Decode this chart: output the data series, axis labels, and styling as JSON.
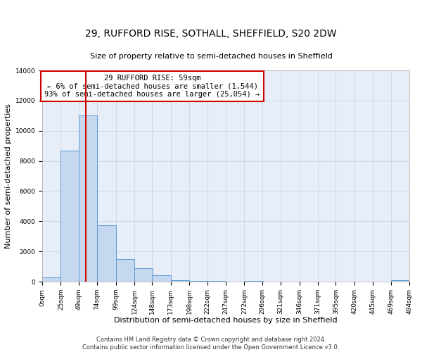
{
  "title": "29, RUFFORD RISE, SOTHALL, SHEFFIELD, S20 2DW",
  "subtitle": "Size of property relative to semi-detached houses in Sheffield",
  "xlabel": "Distribution of semi-detached houses by size in Sheffield",
  "ylabel": "Number of semi-detached properties",
  "bar_left_edges": [
    0,
    25,
    49,
    74,
    99,
    124,
    148,
    173,
    198,
    222,
    247,
    272,
    296,
    321,
    346,
    371,
    395,
    420,
    445,
    469
  ],
  "bar_heights": [
    300,
    8700,
    11000,
    3750,
    1500,
    900,
    400,
    100,
    60,
    50,
    0,
    50,
    0,
    0,
    0,
    0,
    0,
    0,
    0,
    100
  ],
  "bin_width": 25,
  "bar_color": "#c5d8f0",
  "bar_edge_color": "#5b9bd5",
  "property_line_x": 59,
  "property_line_color": "#cc0000",
  "ylim": [
    0,
    14000
  ],
  "yticks": [
    0,
    2000,
    4000,
    6000,
    8000,
    10000,
    12000,
    14000
  ],
  "xtick_labels": [
    "0sqm",
    "25sqm",
    "49sqm",
    "74sqm",
    "99sqm",
    "124sqm",
    "148sqm",
    "173sqm",
    "198sqm",
    "222sqm",
    "247sqm",
    "272sqm",
    "296sqm",
    "321sqm",
    "346sqm",
    "371sqm",
    "395sqm",
    "420sqm",
    "445sqm",
    "469sqm",
    "494sqm"
  ],
  "xtick_positions": [
    0,
    25,
    49,
    74,
    99,
    124,
    148,
    173,
    198,
    222,
    247,
    272,
    296,
    321,
    346,
    371,
    395,
    420,
    445,
    469,
    494
  ],
  "xlim": [
    0,
    494
  ],
  "annotation_title": "29 RUFFORD RISE: 59sqm",
  "annotation_line1": "← 6% of semi-detached houses are smaller (1,544)",
  "annotation_line2": "93% of semi-detached houses are larger (25,054) →",
  "annotation_box_color": "#ffffff",
  "annotation_box_edge_color": "#cc0000",
  "grid_color": "#c0d0e8",
  "background_color": "#e8eef8",
  "footer_line1": "Contains HM Land Registry data © Crown copyright and database right 2024.",
  "footer_line2": "Contains public sector information licensed under the Open Government Licence v3.0.",
  "title_fontsize": 10,
  "subtitle_fontsize": 8,
  "axis_label_fontsize": 8,
  "tick_fontsize": 6.5,
  "annotation_fontsize": 7.5,
  "footer_fontsize": 6
}
